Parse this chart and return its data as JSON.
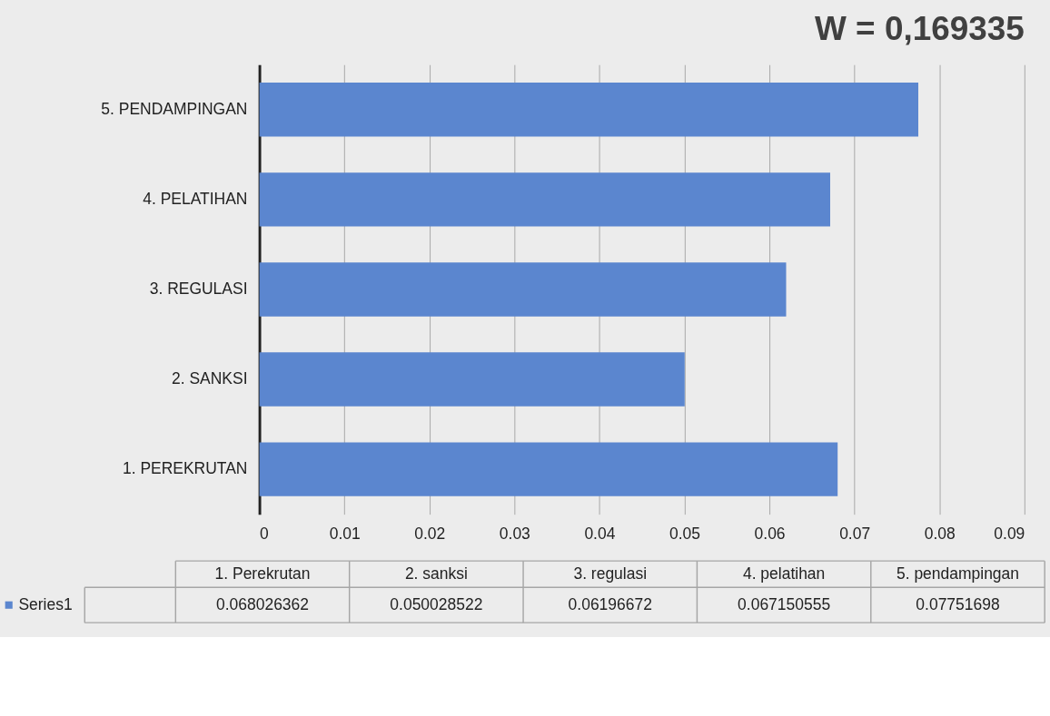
{
  "chart_data": {
    "type": "bar",
    "orientation": "horizontal",
    "title": "W = 0,169335",
    "categories": [
      "5. PENDAMPINGAN",
      "4. PELATIHAN",
      "3. REGULASI",
      "2. SANKSI",
      "1. PEREKRUTAN"
    ],
    "series": [
      {
        "name": "Series1",
        "color": "#5b86cf",
        "values": [
          0.07751698,
          0.067150555,
          0.06196672,
          0.050028522,
          0.068026362
        ]
      }
    ],
    "xlim": [
      0,
      0.09
    ],
    "xticks": [
      0,
      0.01,
      0.02,
      0.03,
      0.04,
      0.05,
      0.06,
      0.07,
      0.08,
      0.09
    ],
    "grid": "x",
    "legend": "bottom",
    "value_labels": [
      "0.07751698",
      "0.067150555",
      "0.06196672",
      "0.050028522",
      "0.068026362"
    ],
    "annotations": [
      "1. Perekrutan",
      "2. sanksi",
      "3. regulasi",
      "4. pelatihan",
      "5. pendampingan"
    ]
  }
}
